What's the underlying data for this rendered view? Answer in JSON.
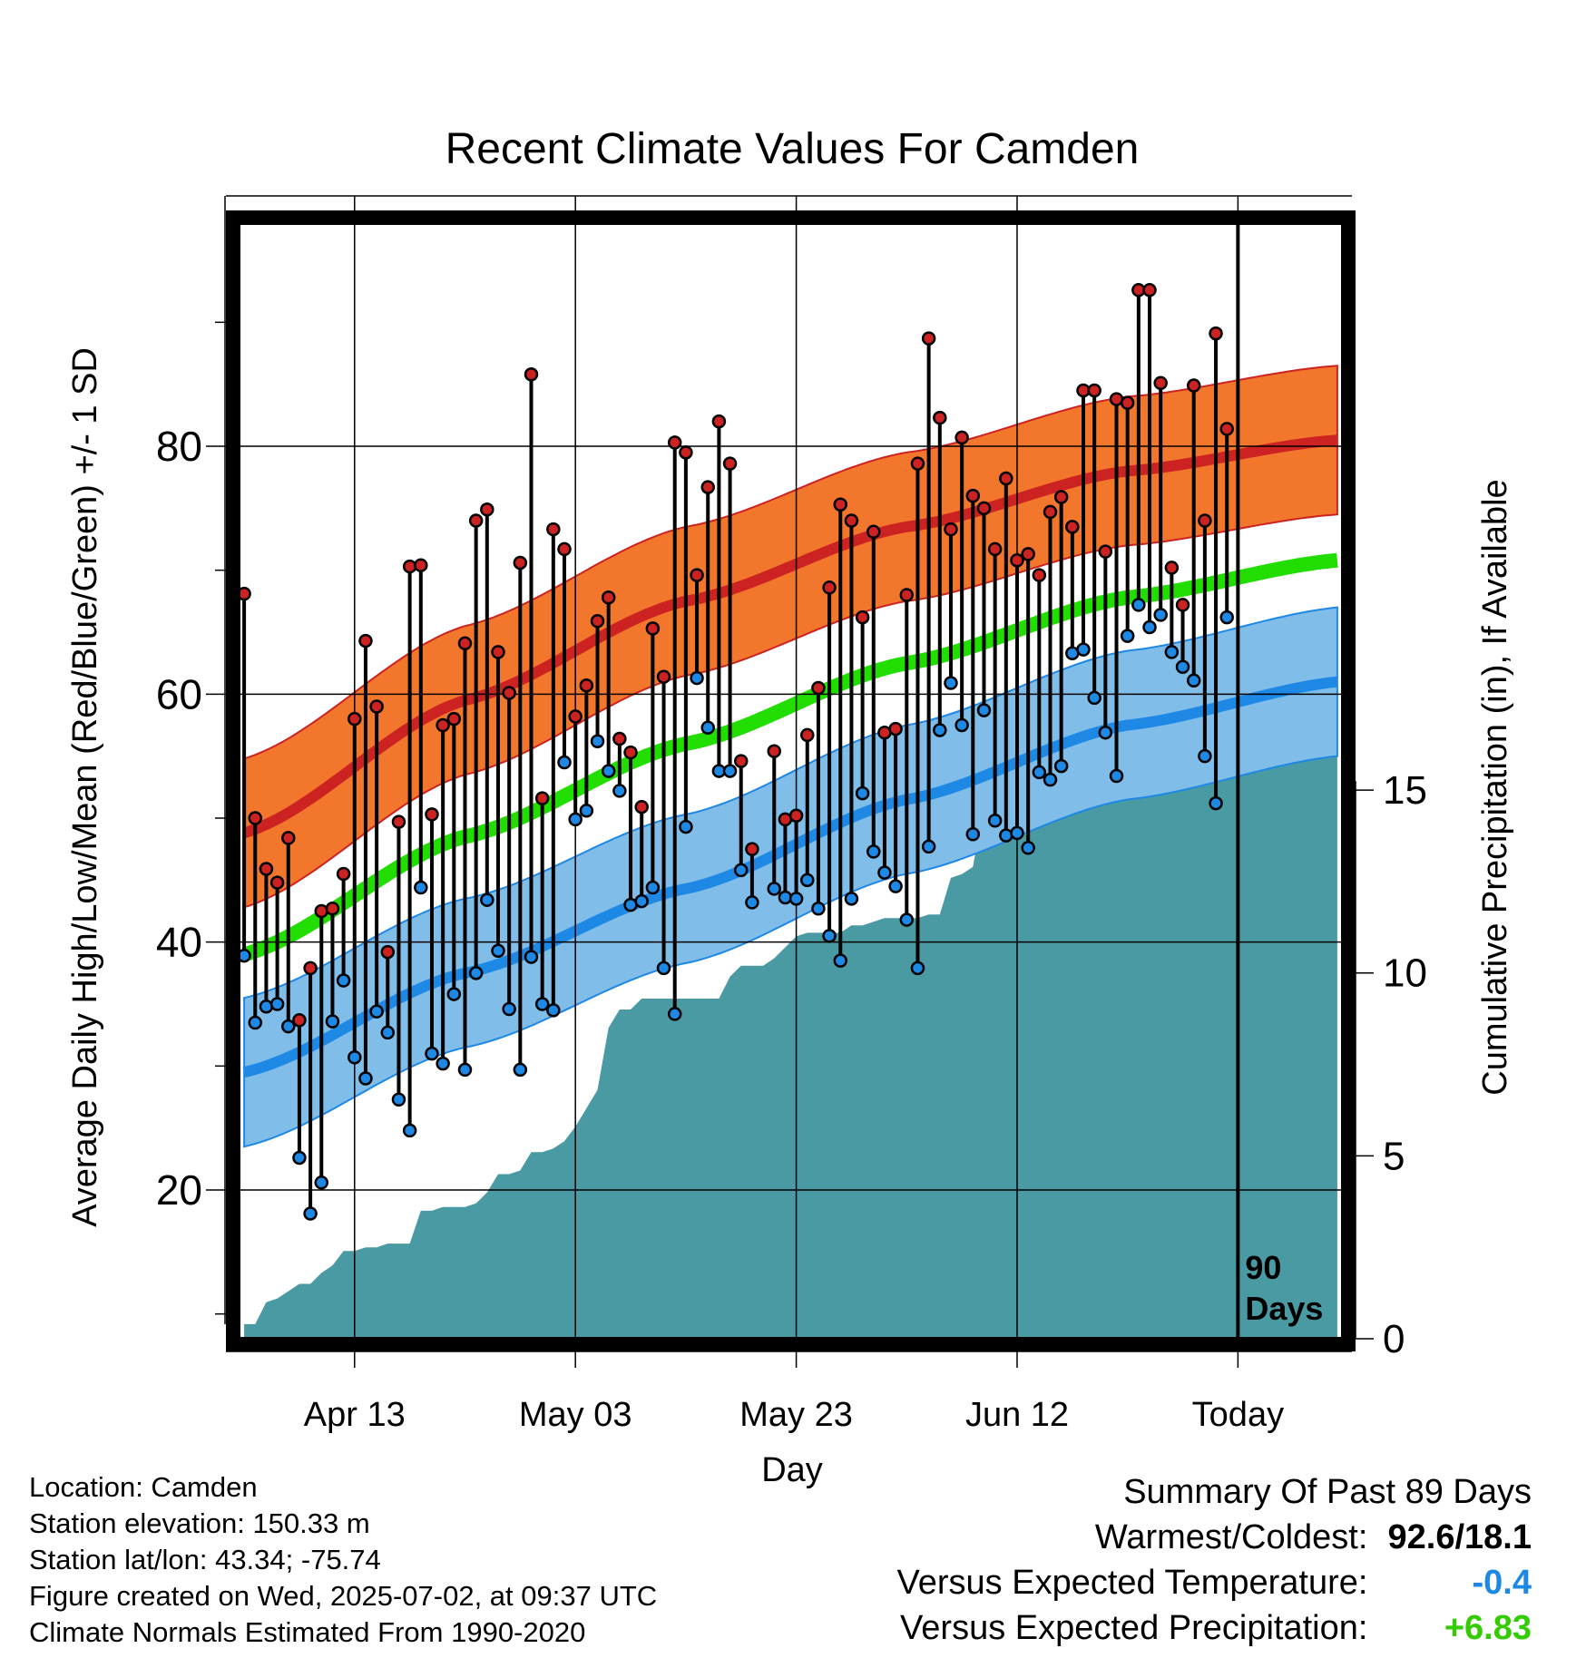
{
  "chart_data": {
    "type": "line",
    "title": "Recent Climate Values For Camden",
    "xlabel": "Day",
    "ylabel": "Average Daily High/Low/Mean (Red/Blue/Green) +/- 1 SD",
    "y2label": "Cumulative Precipitation (in), If Available",
    "x_tick_labels": [
      "Apr 13",
      "May 03",
      "May 23",
      "Jun 12",
      "Today"
    ],
    "x_tick_days": [
      10,
      30,
      50,
      70,
      90
    ],
    "xlim": [
      -0.5,
      99.5
    ],
    "ylim": [
      8,
      98
    ],
    "y_ticks": [
      20,
      40,
      60,
      80
    ],
    "y2lim": [
      0,
      30.5
    ],
    "y2_ticks": [
      0,
      5,
      10,
      15
    ],
    "today_marker": {
      "day": 90,
      "label_line1": "90",
      "label_line2": "Days"
    },
    "normal_high": [
      {
        "day": 0,
        "value": 48.8
      },
      {
        "day": 20,
        "value": 59.5
      },
      {
        "day": 40,
        "value": 67.5
      },
      {
        "day": 60,
        "value": 73.5
      },
      {
        "day": 80,
        "value": 78.0
      },
      {
        "day": 99,
        "value": 80.5
      }
    ],
    "normal_high_sd": 6,
    "normal_low": [
      {
        "day": 0,
        "value": 29.5
      },
      {
        "day": 20,
        "value": 37.5
      },
      {
        "day": 40,
        "value": 44.3
      },
      {
        "day": 60,
        "value": 51.5
      },
      {
        "day": 80,
        "value": 57.5
      },
      {
        "day": 99,
        "value": 61.0
      }
    ],
    "normal_low_sd": 6,
    "normal_mean": [
      {
        "day": 0,
        "value": 39.0
      },
      {
        "day": 20,
        "value": 48.5
      },
      {
        "day": 40,
        "value": 56.0
      },
      {
        "day": 60,
        "value": 62.5
      },
      {
        "day": 80,
        "value": 67.8
      },
      {
        "day": 99,
        "value": 70.8
      }
    ],
    "daily_high": [
      68.1,
      50.0,
      45.9,
      44.8,
      48.4,
      33.7,
      37.9,
      42.5,
      42.7,
      45.5,
      58.0,
      64.3,
      59.0,
      39.2,
      49.7,
      70.3,
      70.4,
      50.3,
      57.5,
      58.0,
      64.1,
      74.0,
      74.9,
      63.4,
      60.1,
      70.6,
      85.8,
      51.6,
      73.3,
      71.7,
      58.2,
      60.7,
      65.9,
      67.8,
      56.4,
      55.3,
      50.9,
      65.3,
      61.4,
      80.3,
      79.5,
      69.6,
      76.7,
      82.0,
      78.6,
      54.6,
      47.5,
      null,
      55.4,
      49.9,
      50.2,
      56.7,
      60.5,
      68.6,
      75.3,
      74.0,
      66.2,
      73.1,
      56.9,
      57.2,
      68.0,
      78.6,
      88.7,
      82.3,
      73.3,
      80.7,
      76.0,
      75.0,
      71.7,
      77.4,
      70.8,
      71.3,
      69.6,
      74.7,
      75.9,
      73.5,
      84.5,
      84.5,
      71.5,
      83.8,
      83.5,
      92.6,
      92.6,
      85.1,
      70.2,
      67.2,
      84.9,
      74.0,
      89.1,
      81.4
    ],
    "daily_low": [
      38.9,
      33.5,
      34.8,
      35.0,
      33.2,
      22.6,
      18.1,
      20.6,
      33.6,
      36.9,
      30.7,
      29.0,
      34.4,
      32.7,
      27.3,
      24.8,
      44.4,
      31.0,
      30.2,
      35.8,
      29.7,
      37.5,
      43.4,
      39.3,
      34.6,
      29.7,
      38.8,
      35.0,
      34.5,
      54.5,
      49.9,
      50.6,
      56.2,
      53.8,
      52.2,
      43.0,
      43.3,
      44.4,
      37.9,
      34.2,
      49.3,
      61.3,
      57.3,
      53.8,
      53.8,
      45.8,
      43.2,
      null,
      44.3,
      43.6,
      43.5,
      45.0,
      42.7,
      40.5,
      38.5,
      43.5,
      52.0,
      47.3,
      45.6,
      44.5,
      41.8,
      37.9,
      47.7,
      57.1,
      60.9,
      57.5,
      48.7,
      58.7,
      49.8,
      48.6,
      48.8,
      47.6,
      53.7,
      53.1,
      54.2,
      63.3,
      63.6,
      59.7,
      56.9,
      53.4,
      64.7,
      67.2,
      65.4,
      66.4,
      63.4,
      62.2,
      61.1,
      55.0,
      51.2,
      66.2
    ],
    "cumulative_precip": [
      0.4,
      0.4,
      1.0,
      1.1,
      1.3,
      1.5,
      1.5,
      1.8,
      2.0,
      2.4,
      2.4,
      2.5,
      2.5,
      2.6,
      2.6,
      2.6,
      3.5,
      3.5,
      3.6,
      3.6,
      3.6,
      3.7,
      4.0,
      4.5,
      4.5,
      4.6,
      5.1,
      5.1,
      5.2,
      5.4,
      5.8,
      6.3,
      6.8,
      8.5,
      9.0,
      9.0,
      9.3,
      9.3,
      9.3,
      9.3,
      9.3,
      9.3,
      9.3,
      9.3,
      9.9,
      10.2,
      10.2,
      10.2,
      10.4,
      10.7,
      11.0,
      11.1,
      11.1,
      11.1,
      11.1,
      11.3,
      11.3,
      11.4,
      11.5,
      11.5,
      11.5,
      11.5,
      11.6,
      11.6,
      12.6,
      12.7,
      12.9,
      14.6,
      14.7,
      14.7,
      14.7,
      14.7,
      14.7,
      14.8,
      14.8,
      14.8,
      14.8,
      14.8,
      14.9,
      15.0,
      15.0,
      17.0,
      17.0,
      17.0,
      17.0,
      17.0,
      17.1,
      17.1,
      17.2,
      17.6,
      17.6,
      17.6,
      17.6,
      17.6,
      17.6,
      17.6,
      17.6,
      17.6,
      17.6,
      17.6
    ],
    "colors": {
      "high_band": "#f2772c",
      "high_line": "#cc2222",
      "low_band": "#80bde8",
      "low_line": "#1e88e5",
      "mean_line": "#22dd00",
      "precip_fill": "#4a9aa3",
      "high_dot": "#cc2222",
      "low_dot": "#1e88e5"
    },
    "grid": true,
    "legend": "none"
  },
  "metadata": {
    "location": "Location: Camden",
    "elevation": "Station elevation: 150.33 m",
    "latlon": "Station lat/lon: 43.34; -75.74",
    "created": "Figure created on Wed, 2025-07-02, at 09:37 UTC",
    "normals": "Climate Normals Estimated From 1990-2020"
  },
  "summary": {
    "title": "Summary Of Past 89 Days",
    "warmest_coldest_label": "Warmest/Coldest:",
    "warmest_coldest_value": "92.6/18.1",
    "temp_label": "Versus Expected Temperature:",
    "temp_value": "-0.4",
    "temp_color": "#1e88e5",
    "precip_label": "Versus Expected Precipitation:",
    "precip_value": "+6.83",
    "precip_color": "#33cc00"
  }
}
